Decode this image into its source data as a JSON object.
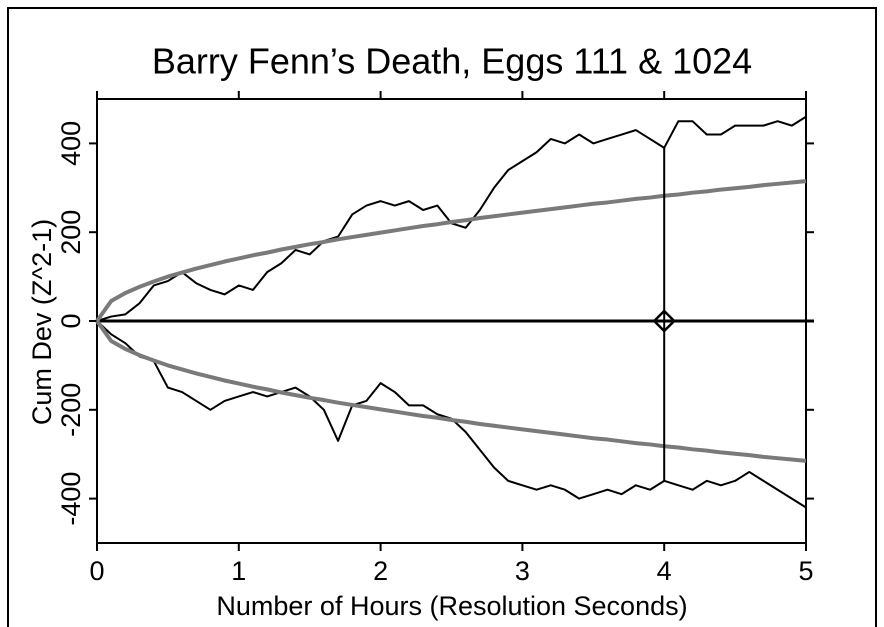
{
  "chart_data": {
    "type": "line",
    "title": "Barry Fenn’s Death, Eggs 111 & 1024",
    "xlabel": "Number of Hours (Resolution Seconds)",
    "ylabel": "Cum Dev (Z^2-1)",
    "xlim": [
      0,
      5
    ],
    "ylim": [
      -500,
      500
    ],
    "xticks": [
      0,
      1,
      2,
      3,
      4,
      5
    ],
    "yticks": [
      -400,
      -200,
      0,
      200,
      400
    ],
    "x": [
      0,
      0.1,
      0.2,
      0.3,
      0.4,
      0.5,
      0.6,
      0.7,
      0.8,
      0.9,
      1,
      1.1,
      1.2,
      1.3,
      1.4,
      1.5,
      1.6,
      1.7,
      1.8,
      1.9,
      2,
      2.1,
      2.2,
      2.3,
      2.4,
      2.5,
      2.6,
      2.7,
      2.8,
      2.9,
      3,
      3.1,
      3.2,
      3.3,
      3.4,
      3.5,
      3.6,
      3.7,
      3.8,
      3.9,
      4,
      4.1,
      4.2,
      4.3,
      4.4,
      4.5,
      4.6,
      4.7,
      4.8,
      4.9,
      5
    ],
    "series": [
      {
        "color": "#000000",
        "values": [
          0,
          10,
          15,
          40,
          80,
          90,
          110,
          85,
          70,
          60,
          80,
          70,
          110,
          130,
          160,
          150,
          180,
          190,
          240,
          260,
          270,
          260,
          270,
          250,
          260,
          220,
          210,
          250,
          300,
          340,
          360,
          380,
          410,
          400,
          420,
          400,
          410,
          420,
          430,
          410,
          390,
          450,
          450,
          420,
          420,
          440,
          440,
          440,
          450,
          440,
          460
        ]
      },
      {
        "color": "#000000",
        "values": [
          0,
          -30,
          -50,
          -80,
          -90,
          -150,
          -160,
          -180,
          -200,
          -180,
          -170,
          -160,
          -170,
          -160,
          -150,
          -170,
          -200,
          -270,
          -190,
          -180,
          -140,
          -160,
          -190,
          -190,
          -210,
          -220,
          -250,
          -290,
          -330,
          -360,
          -370,
          -380,
          -370,
          -380,
          -400,
          -390,
          -380,
          -390,
          -370,
          -380,
          -360,
          -370,
          -380,
          -360,
          -370,
          -360,
          -340,
          -360,
          -380,
          -400,
          -420
        ]
      },
      {
        "color": "#7a7a7a",
        "values": [
          0,
          45,
          63,
          77,
          89,
          100,
          109,
          118,
          126,
          134,
          141,
          148,
          154,
          161,
          167,
          173,
          178,
          184,
          189,
          194,
          199,
          204,
          209,
          214,
          218,
          223,
          227,
          232,
          236,
          240,
          244,
          248,
          252,
          256,
          260,
          264,
          267,
          271,
          275,
          278,
          282,
          285,
          289,
          292,
          296,
          299,
          302,
          306,
          309,
          312,
          315
        ]
      },
      {
        "color": "#7a7a7a",
        "values": [
          0,
          -45,
          -63,
          -77,
          -89,
          -100,
          -109,
          -118,
          -126,
          -134,
          -141,
          -148,
          -154,
          -161,
          -167,
          -173,
          -178,
          -184,
          -189,
          -194,
          -199,
          -204,
          -209,
          -214,
          -218,
          -223,
          -227,
          -232,
          -236,
          -240,
          -244,
          -248,
          -252,
          -256,
          -260,
          -264,
          -267,
          -271,
          -275,
          -278,
          -282,
          -285,
          -289,
          -292,
          -296,
          -299,
          -302,
          -306,
          -309,
          -312,
          -315
        ]
      }
    ],
    "zero_line": 0,
    "event": {
      "x": 4,
      "y": 0,
      "ymin": -360,
      "ymax": 390
    }
  }
}
